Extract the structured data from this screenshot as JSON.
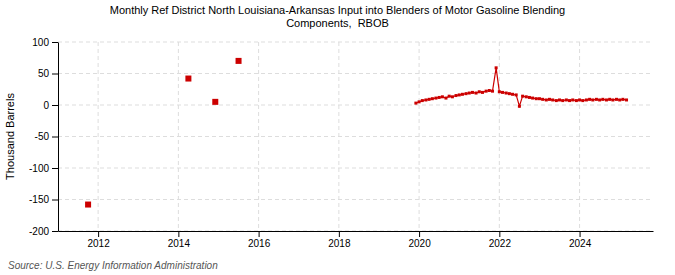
{
  "chart_data": {
    "type": "line",
    "title": "Monthly Ref District North Louisiana-Arkansas Input into Blenders of Motor Gasoline Blending\nComponents,  RBOB",
    "ylabel": "Thousand Barrels",
    "annotations": [
      "Source: U.S. Energy Information Administration"
    ],
    "xlim": [
      2011.0,
      2025.83
    ],
    "ylim": [
      -200,
      100
    ],
    "xticks": [
      2012,
      2014,
      2016,
      2018,
      2020,
      2022,
      2024
    ],
    "yticks": [
      100,
      50,
      0,
      -50,
      -100,
      -150,
      -200
    ],
    "grid": true,
    "series": [
      {
        "type": "scatter",
        "color": "#cc0000",
        "marker": "square",
        "line_style": "none",
        "x": [
          2011.75,
          2014.25,
          2014.92,
          2015.5
        ],
        "values": [
          -158,
          42,
          5,
          70
        ]
      },
      {
        "type": "line",
        "color": "#cc0000",
        "marker": "square",
        "line_style": "solid",
        "x": [
          2019.92,
          2020.0,
          2020.08,
          2020.17,
          2020.25,
          2020.33,
          2020.42,
          2020.5,
          2020.58,
          2020.67,
          2020.75,
          2020.83,
          2020.92,
          2021.0,
          2021.08,
          2021.17,
          2021.25,
          2021.33,
          2021.42,
          2021.5,
          2021.58,
          2021.67,
          2021.75,
          2021.83,
          2021.92,
          2022.0,
          2022.08,
          2022.17,
          2022.25,
          2022.33,
          2022.42,
          2022.5,
          2022.58,
          2022.67,
          2022.75,
          2022.83,
          2022.92,
          2023.0,
          2023.08,
          2023.17,
          2023.25,
          2023.33,
          2023.42,
          2023.5,
          2023.58,
          2023.67,
          2023.75,
          2023.83,
          2023.92,
          2024.0,
          2024.08,
          2024.17,
          2024.25,
          2024.33,
          2024.42,
          2024.5,
          2024.58,
          2024.67,
          2024.75,
          2024.83,
          2024.92,
          2025.0,
          2025.08,
          2025.17
        ],
        "values": [
          3,
          5,
          7,
          8,
          9,
          10,
          11,
          12,
          13,
          11,
          14,
          13,
          15,
          16,
          17,
          18,
          19,
          20,
          19,
          21,
          20,
          22,
          23,
          22,
          59,
          21,
          20,
          19,
          18,
          17,
          16,
          -2,
          14,
          13,
          12,
          11,
          10,
          10,
          9,
          8,
          9,
          8,
          7,
          8,
          7,
          8,
          7,
          8,
          7,
          8,
          7,
          8,
          9,
          8,
          9,
          8,
          9,
          8,
          9,
          8,
          9,
          8,
          9,
          8
        ]
      }
    ]
  }
}
